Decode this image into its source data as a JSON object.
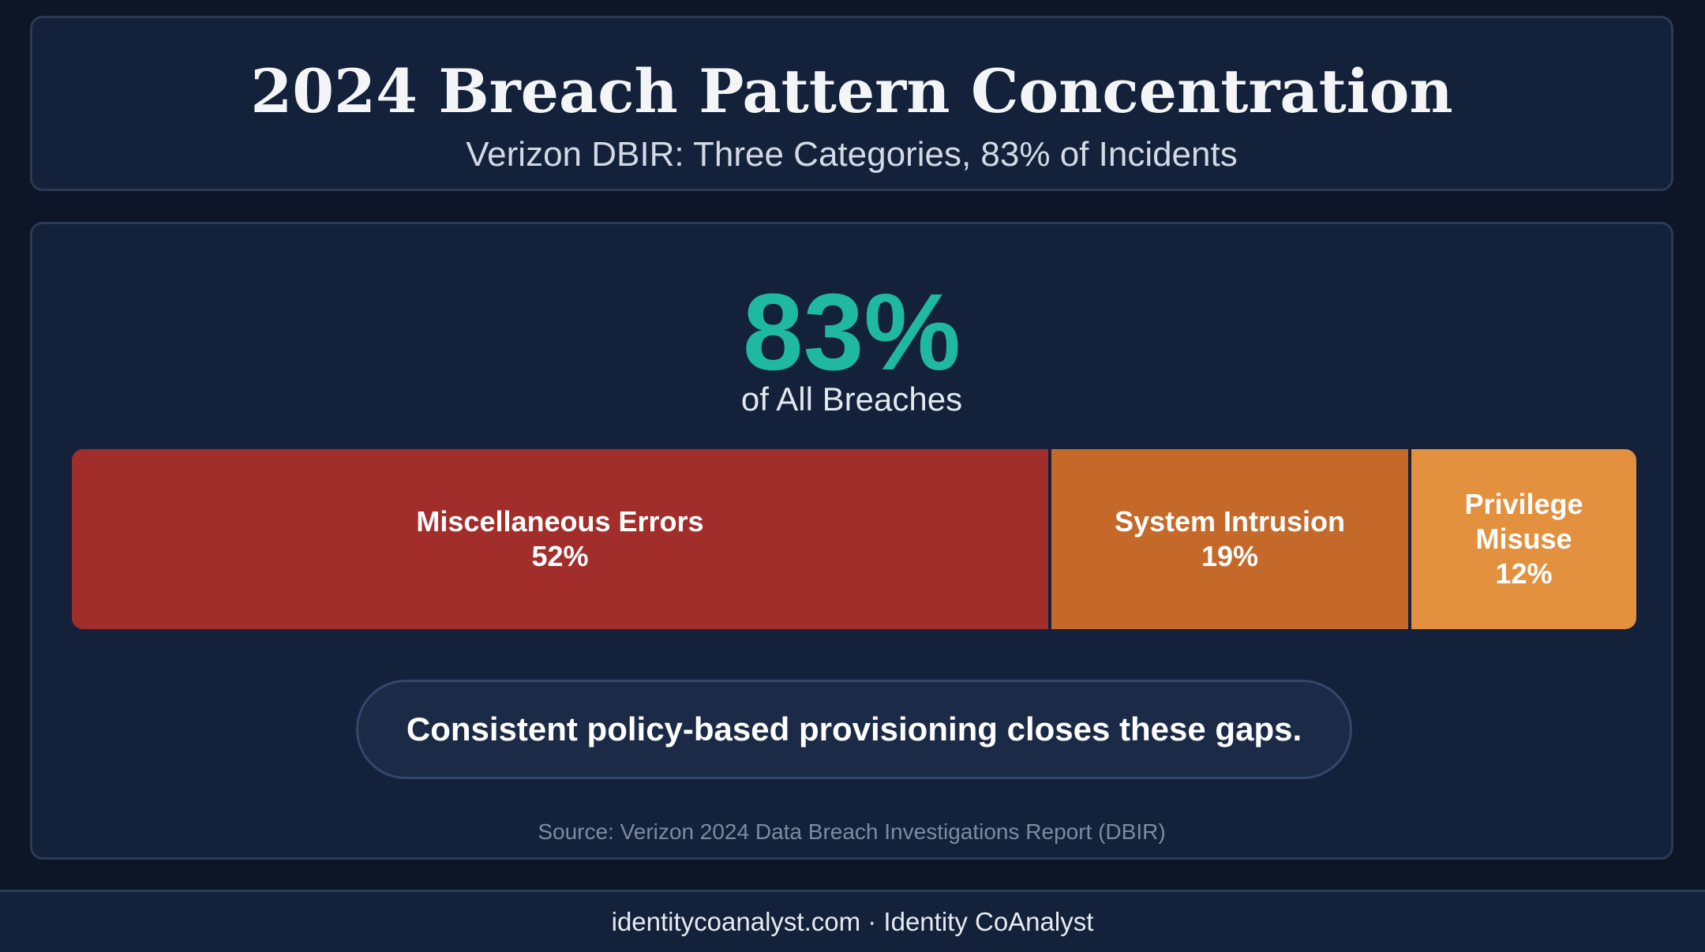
{
  "header": {
    "title": "2024 Breach Pattern Concentration",
    "subtitle": "Verizon DBIR: Three Categories, 83% of Incidents"
  },
  "summary": {
    "big_number": "83%",
    "caption": "of All Breaches"
  },
  "chart_data": {
    "type": "bar",
    "orientation": "horizontal-stacked",
    "categories": [
      "Miscellaneous Errors",
      "System Intrusion",
      "Privilege Misuse"
    ],
    "values": [
      52,
      19,
      12
    ],
    "value_labels": [
      "52%",
      "19%",
      "12%"
    ],
    "total": 83,
    "colors": [
      "#a22e2c",
      "#c4692a",
      "#e3903f"
    ]
  },
  "callout": "Consistent policy-based provisioning closes these gaps.",
  "source": "Source: Verizon 2024 Data Breach Investigations Report (DBIR)",
  "footer": "identitycoanalyst.com · Identity CoAnalyst",
  "colors": {
    "background": "#0d1626",
    "card": "#13213a",
    "accent": "#1fb8a0"
  }
}
